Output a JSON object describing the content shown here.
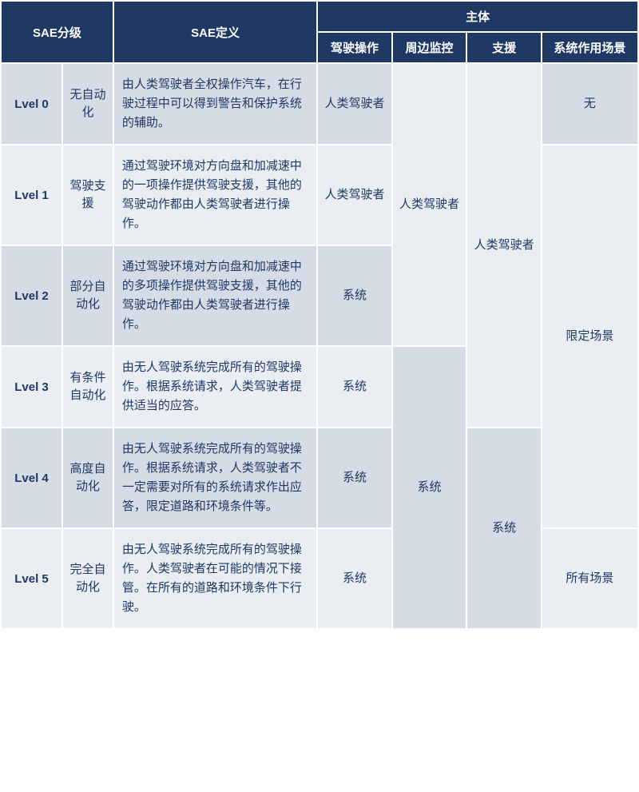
{
  "colors": {
    "header_bg": "#1f3864",
    "header_fg": "#ffffff",
    "row_odd_bg": "#d6dce5",
    "row_even_bg": "#eaedf2",
    "text": "#1f3864",
    "border": "#ffffff"
  },
  "fontsizes": {
    "header": 15,
    "body": 15
  },
  "header": {
    "sae_level": "SAE分级",
    "sae_def": "SAE定义",
    "subject": "主体",
    "driving": "驾驶操作",
    "monitoring": "周边监控",
    "support": "支援",
    "scenario": "系统作用场景"
  },
  "rows": [
    {
      "level": "Lvel 0",
      "name": "无自动化",
      "def": "由人类驾驶者全权操作汽车，在行驶过程中可以得到警告和保护系统的辅助。",
      "driving": "人类驾驶者"
    },
    {
      "level": "Lvel 1",
      "name": "驾驶支援",
      "def": "通过驾驶环境对方向盘和加减速中的一项操作提供驾驶支援，其他的驾驶动作都由人类驾驶者进行操作。",
      "driving": "人类驾驶者"
    },
    {
      "level": "Lvel 2",
      "name": "部分自动化",
      "def": "通过驾驶环境对方向盘和加减速中的多项操作提供驾驶支援，其他的驾驶动作都由人类驾驶者进行操作。",
      "driving": "系统"
    },
    {
      "level": "Lvel 3",
      "name": "有条件自动化",
      "def": "由无人驾驶系统完成所有的驾驶操作。根据系统请求，人类驾驶者提供适当的应答。",
      "driving": "系统"
    },
    {
      "level": "Lvel 4",
      "name": "高度自动化",
      "def": "由无人驾驶系统完成所有的驾驶操作。根据系统请求，人类驾驶者不一定需要对所有的系统请求作出应答，限定道路和环境条件等。",
      "driving": "系统"
    },
    {
      "level": "Lvel 5",
      "name": "完全自动化",
      "def": "由无人驾驶系统完成所有的驾驶操作。人类驾驶者在可能的情况下接管。在所有的道路和环境条件下行驶。",
      "driving": "系统"
    }
  ],
  "monitoring": {
    "span1": "人类驾驶者",
    "span2": "系统"
  },
  "support": {
    "span1": "人类驾驶者",
    "span2": "系统"
  },
  "scenario": {
    "span1": "无",
    "span2": "限定场景",
    "span3": "所有场景"
  }
}
